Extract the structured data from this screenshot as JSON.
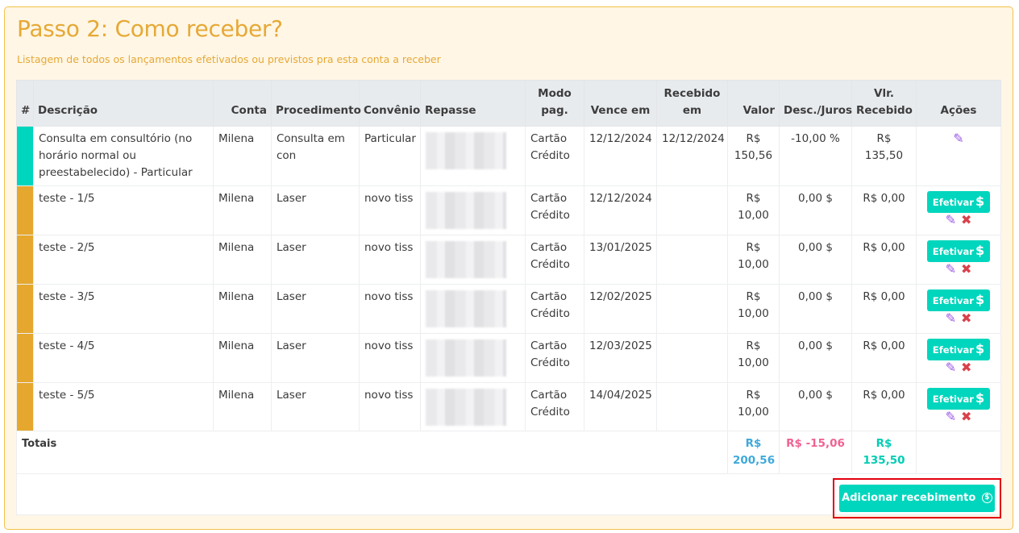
{
  "header": {
    "title": "Passo 2: Como receber?",
    "subtitle": "Listagem de todos os lançamentos efetivados ou previstos pra esta conta a receber"
  },
  "colors": {
    "accent": "#e6a936",
    "teal": "#00d6bd",
    "orange": "#e5a72e",
    "danger": "#d9414a",
    "edit": "#9b59e6"
  },
  "table": {
    "headers": [
      "#",
      "Descrição",
      "Conta",
      "Procedimento",
      "Convênio",
      "Repasse",
      "Modo pag.",
      "Vence em",
      "Recebido em",
      "Valor",
      "Desc./Juros",
      "Vlr. Recebido",
      "Ações"
    ],
    "rows": [
      {
        "status_color": "#00d6bd",
        "descricao": "Consulta em consultório (no horário normal ou preestabelecido) - Particular",
        "conta": "Milena",
        "procedimento": "Consulta em con",
        "convenio": "Particular",
        "modo": "Cartão Crédito",
        "vence": "12/12/2024",
        "recebido": "12/12/2024",
        "valor": "R$ 150,56",
        "desc": "-10,00 %",
        "vlr_recebido": "R$ 135,50",
        "efetivar": ""
      },
      {
        "status_color": "#e5a72e",
        "descricao": "teste - 1/5",
        "conta": "Milena",
        "procedimento": "Laser",
        "convenio": "novo tiss",
        "modo": "Cartão Crédito",
        "vence": "12/12/2024",
        "recebido": "",
        "valor": "R$ 10,00",
        "desc": "0,00 $",
        "vlr_recebido": "R$ 0,00",
        "efetivar": "Efetivar"
      },
      {
        "status_color": "#e5a72e",
        "descricao": "teste - 2/5",
        "conta": "Milena",
        "procedimento": "Laser",
        "convenio": "novo tiss",
        "modo": "Cartão Crédito",
        "vence": "13/01/2025",
        "recebido": "",
        "valor": "R$ 10,00",
        "desc": "0,00 $",
        "vlr_recebido": "R$ 0,00",
        "efetivar": "Efetivar"
      },
      {
        "status_color": "#e5a72e",
        "descricao": "teste - 3/5",
        "conta": "Milena",
        "procedimento": "Laser",
        "convenio": "novo tiss",
        "modo": "Cartão Crédito",
        "vence": "12/02/2025",
        "recebido": "",
        "valor": "R$ 10,00",
        "desc": "0,00 $",
        "vlr_recebido": "R$ 0,00",
        "efetivar": "Efetivar"
      },
      {
        "status_color": "#e5a72e",
        "descricao": "teste - 4/5",
        "conta": "Milena",
        "procedimento": "Laser",
        "convenio": "novo tiss",
        "modo": "Cartão Crédito",
        "vence": "12/03/2025",
        "recebido": "",
        "valor": "R$ 10,00",
        "desc": "0,00 $",
        "vlr_recebido": "R$ 0,00",
        "efetivar": "Efetivar"
      },
      {
        "status_color": "#e5a72e",
        "descricao": "teste - 5/5",
        "conta": "Milena",
        "procedimento": "Laser",
        "convenio": "novo tiss",
        "modo": "Cartão Crédito",
        "vence": "14/04/2025",
        "recebido": "",
        "valor": "R$ 10,00",
        "desc": "0,00 $",
        "vlr_recebido": "R$ 0,00",
        "efetivar": "Efetivar"
      }
    ],
    "totals": {
      "label": "Totais",
      "valor": "R$ 200,56",
      "desc": "R$ -15,06",
      "vlr_recebido": "R$ 135,50"
    }
  },
  "actions": {
    "add_label": "Adicionar recebimento"
  }
}
